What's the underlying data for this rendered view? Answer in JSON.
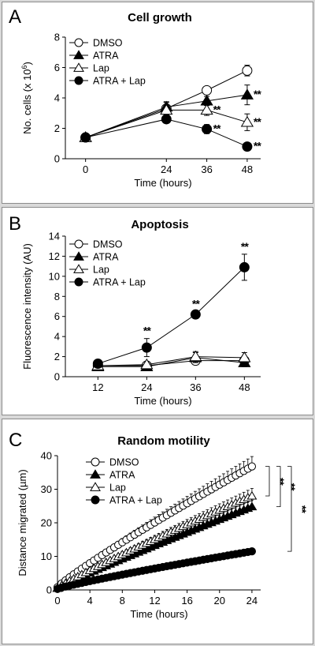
{
  "chart_data": [
    {
      "panel_letter": "A",
      "title": "Cell growth",
      "type": "line",
      "xlabel": "Time (hours)",
      "ylabel": "No. cells (x 10",
      "ylabel_sup": "6",
      "ylabel_close": ")",
      "x": [
        0,
        24,
        36,
        48
      ],
      "xticks": [
        "0",
        "24",
        "36",
        "48"
      ],
      "ylim": [
        0,
        8
      ],
      "yticks": [
        "0",
        "2",
        "4",
        "6",
        "8"
      ],
      "legend_position": "top-left",
      "series": [
        {
          "name": "DMSO",
          "marker": "circle-open",
          "values": [
            1.4,
            3.3,
            4.5,
            5.8
          ],
          "err": [
            0.15,
            0.4,
            0.2,
            0.35
          ],
          "sig": [
            "",
            "",
            "",
            ""
          ]
        },
        {
          "name": "ATRA",
          "marker": "triangle-filled",
          "values": [
            1.4,
            3.4,
            3.8,
            4.2
          ],
          "err": [
            0.15,
            0.35,
            0.3,
            0.65
          ],
          "sig": [
            "",
            "",
            "",
            "**"
          ]
        },
        {
          "name": "Lap",
          "marker": "triangle-open",
          "values": [
            1.4,
            3.2,
            3.2,
            2.4
          ],
          "err": [
            0.15,
            0.3,
            0.35,
            0.55
          ],
          "sig": [
            "",
            "",
            "**",
            "**"
          ]
        },
        {
          "name": "ATRA + Lap",
          "marker": "circle-filled",
          "values": [
            1.4,
            2.6,
            1.95,
            0.8
          ],
          "err": [
            0.15,
            0.25,
            0.3,
            0.2
          ],
          "sig": [
            "",
            "",
            "**",
            "**"
          ]
        }
      ]
    },
    {
      "panel_letter": "B",
      "title": "Apoptosis",
      "type": "line",
      "xlabel": "Time (hours)",
      "ylabel": "Fluorescence intensity (AU)",
      "x": [
        12,
        24,
        36,
        48
      ],
      "xticks": [
        "12",
        "24",
        "36",
        "48"
      ],
      "ylim": [
        0,
        14
      ],
      "yticks": [
        "0",
        "2",
        "4",
        "6",
        "8",
        "10",
        "12",
        "14"
      ],
      "legend_position": "top-left",
      "series": [
        {
          "name": "DMSO",
          "marker": "circle-open",
          "values": [
            1.1,
            1.1,
            1.6,
            1.6
          ],
          "err": [
            0.3,
            0.3,
            0.4,
            0.4
          ],
          "sig": [
            "",
            "",
            "",
            ""
          ]
        },
        {
          "name": "ATRA",
          "marker": "triangle-filled",
          "values": [
            1.0,
            1.0,
            1.9,
            1.4
          ],
          "err": [
            0.3,
            0.3,
            0.5,
            0.4
          ],
          "sig": [
            "",
            "",
            "",
            ""
          ]
        },
        {
          "name": "Lap",
          "marker": "triangle-open",
          "values": [
            1.1,
            1.2,
            2.0,
            1.9
          ],
          "err": [
            0.3,
            0.3,
            0.5,
            0.5
          ],
          "sig": [
            "",
            "",
            "",
            ""
          ]
        },
        {
          "name": "ATRA + Lap",
          "marker": "circle-filled",
          "values": [
            1.3,
            2.9,
            6.2,
            10.9
          ],
          "err": [
            0.4,
            0.9,
            0.3,
            1.3
          ],
          "sig": [
            "",
            "**",
            "**",
            "**"
          ]
        }
      ]
    },
    {
      "panel_letter": "C",
      "title": "Random motility",
      "type": "line",
      "xlabel": "Time (hours)",
      "ylabel": "Distance migrated (µm)",
      "xlim": [
        0,
        24
      ],
      "xticks": [
        "0",
        "4",
        "8",
        "12",
        "16",
        "20",
        "24"
      ],
      "ylim": [
        0,
        40
      ],
      "yticks": [
        "0",
        "10",
        "20",
        "30",
        "40"
      ],
      "legend_position": "top-left",
      "time_step_hours": 0.5,
      "series": [
        {
          "name": "DMSO",
          "marker": "circle-open",
          "start": 0.8,
          "end": 36.8,
          "exponent": 0.9,
          "err_fraction": 0.08
        },
        {
          "name": "ATRA",
          "marker": "triangle-filled",
          "start": 0.5,
          "end": 24.8,
          "exponent": 0.93,
          "err_fraction": 0.08
        },
        {
          "name": "Lap",
          "marker": "triangle-open",
          "start": 0.5,
          "end": 28.0,
          "exponent": 0.92,
          "err_fraction": 0.08
        },
        {
          "name": "ATRA + Lap",
          "marker": "circle-filled",
          "start": 0.3,
          "end": 11.5,
          "exponent": 0.88,
          "err_fraction": 0.04
        }
      ],
      "sig_brackets": [
        {
          "between": [
            "DMSO",
            "Lap"
          ],
          "label": "**"
        },
        {
          "between": [
            "DMSO",
            "ATRA"
          ],
          "label": "**"
        },
        {
          "between": [
            "DMSO",
            "ATRA + Lap"
          ],
          "label": "**"
        }
      ]
    }
  ]
}
